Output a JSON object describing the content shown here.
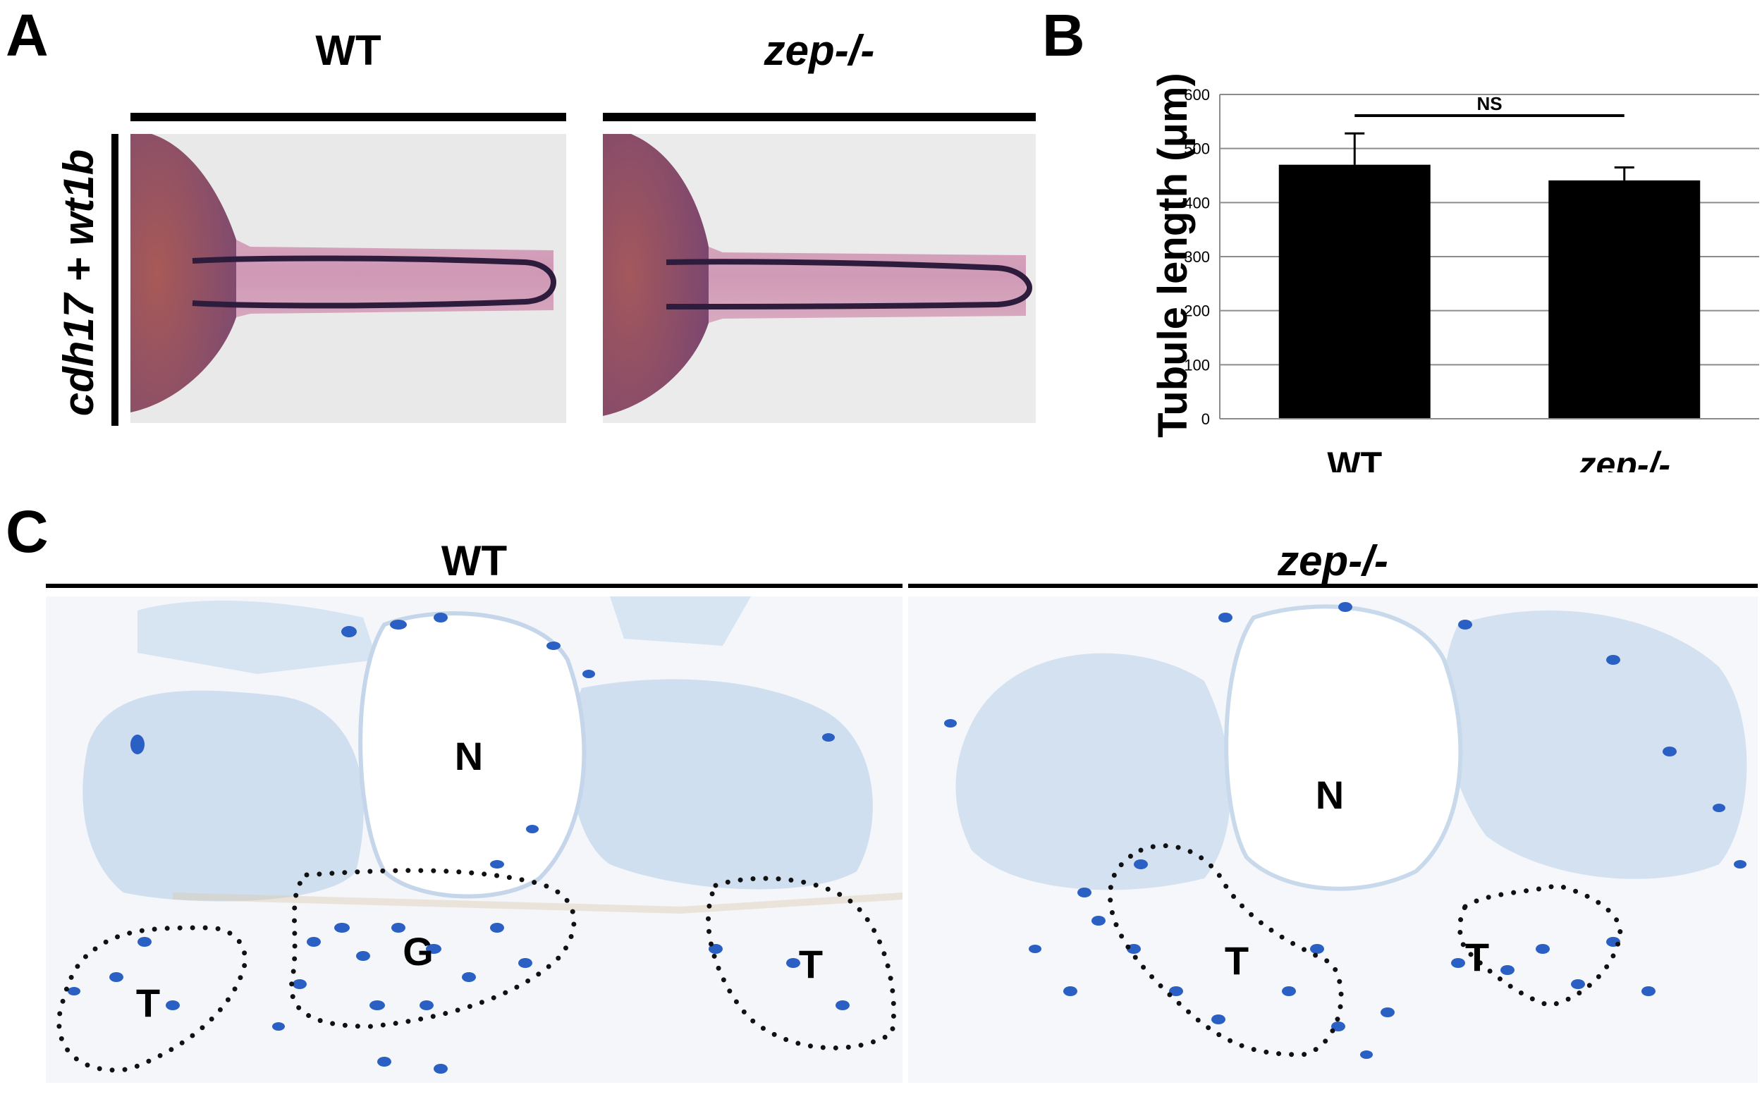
{
  "panels": {
    "a": {
      "letter": "A",
      "wt_label": "WT",
      "mut_label": "zep-/-",
      "stain_label": "cdh17 + wt1b"
    },
    "b": {
      "letter": "B"
    },
    "c": {
      "letter": "C",
      "wt_label": "WT",
      "mut_label": "zep-/-",
      "wt_regions": [
        "N",
        "G",
        "T",
        "T"
      ],
      "mut_regions": [
        "N",
        "T",
        "T"
      ]
    }
  },
  "chart_data": {
    "type": "bar",
    "categories": [
      "WT",
      "zep-/-"
    ],
    "values": [
      470,
      441
    ],
    "error": [
      58,
      24
    ],
    "ylabel": "Tubule length (μm)",
    "ylim": [
      0,
      600
    ],
    "yticks": [
      0,
      100,
      200,
      300,
      400,
      500,
      600
    ],
    "significance": "NS",
    "grid": true,
    "bar_color": "#000000"
  }
}
